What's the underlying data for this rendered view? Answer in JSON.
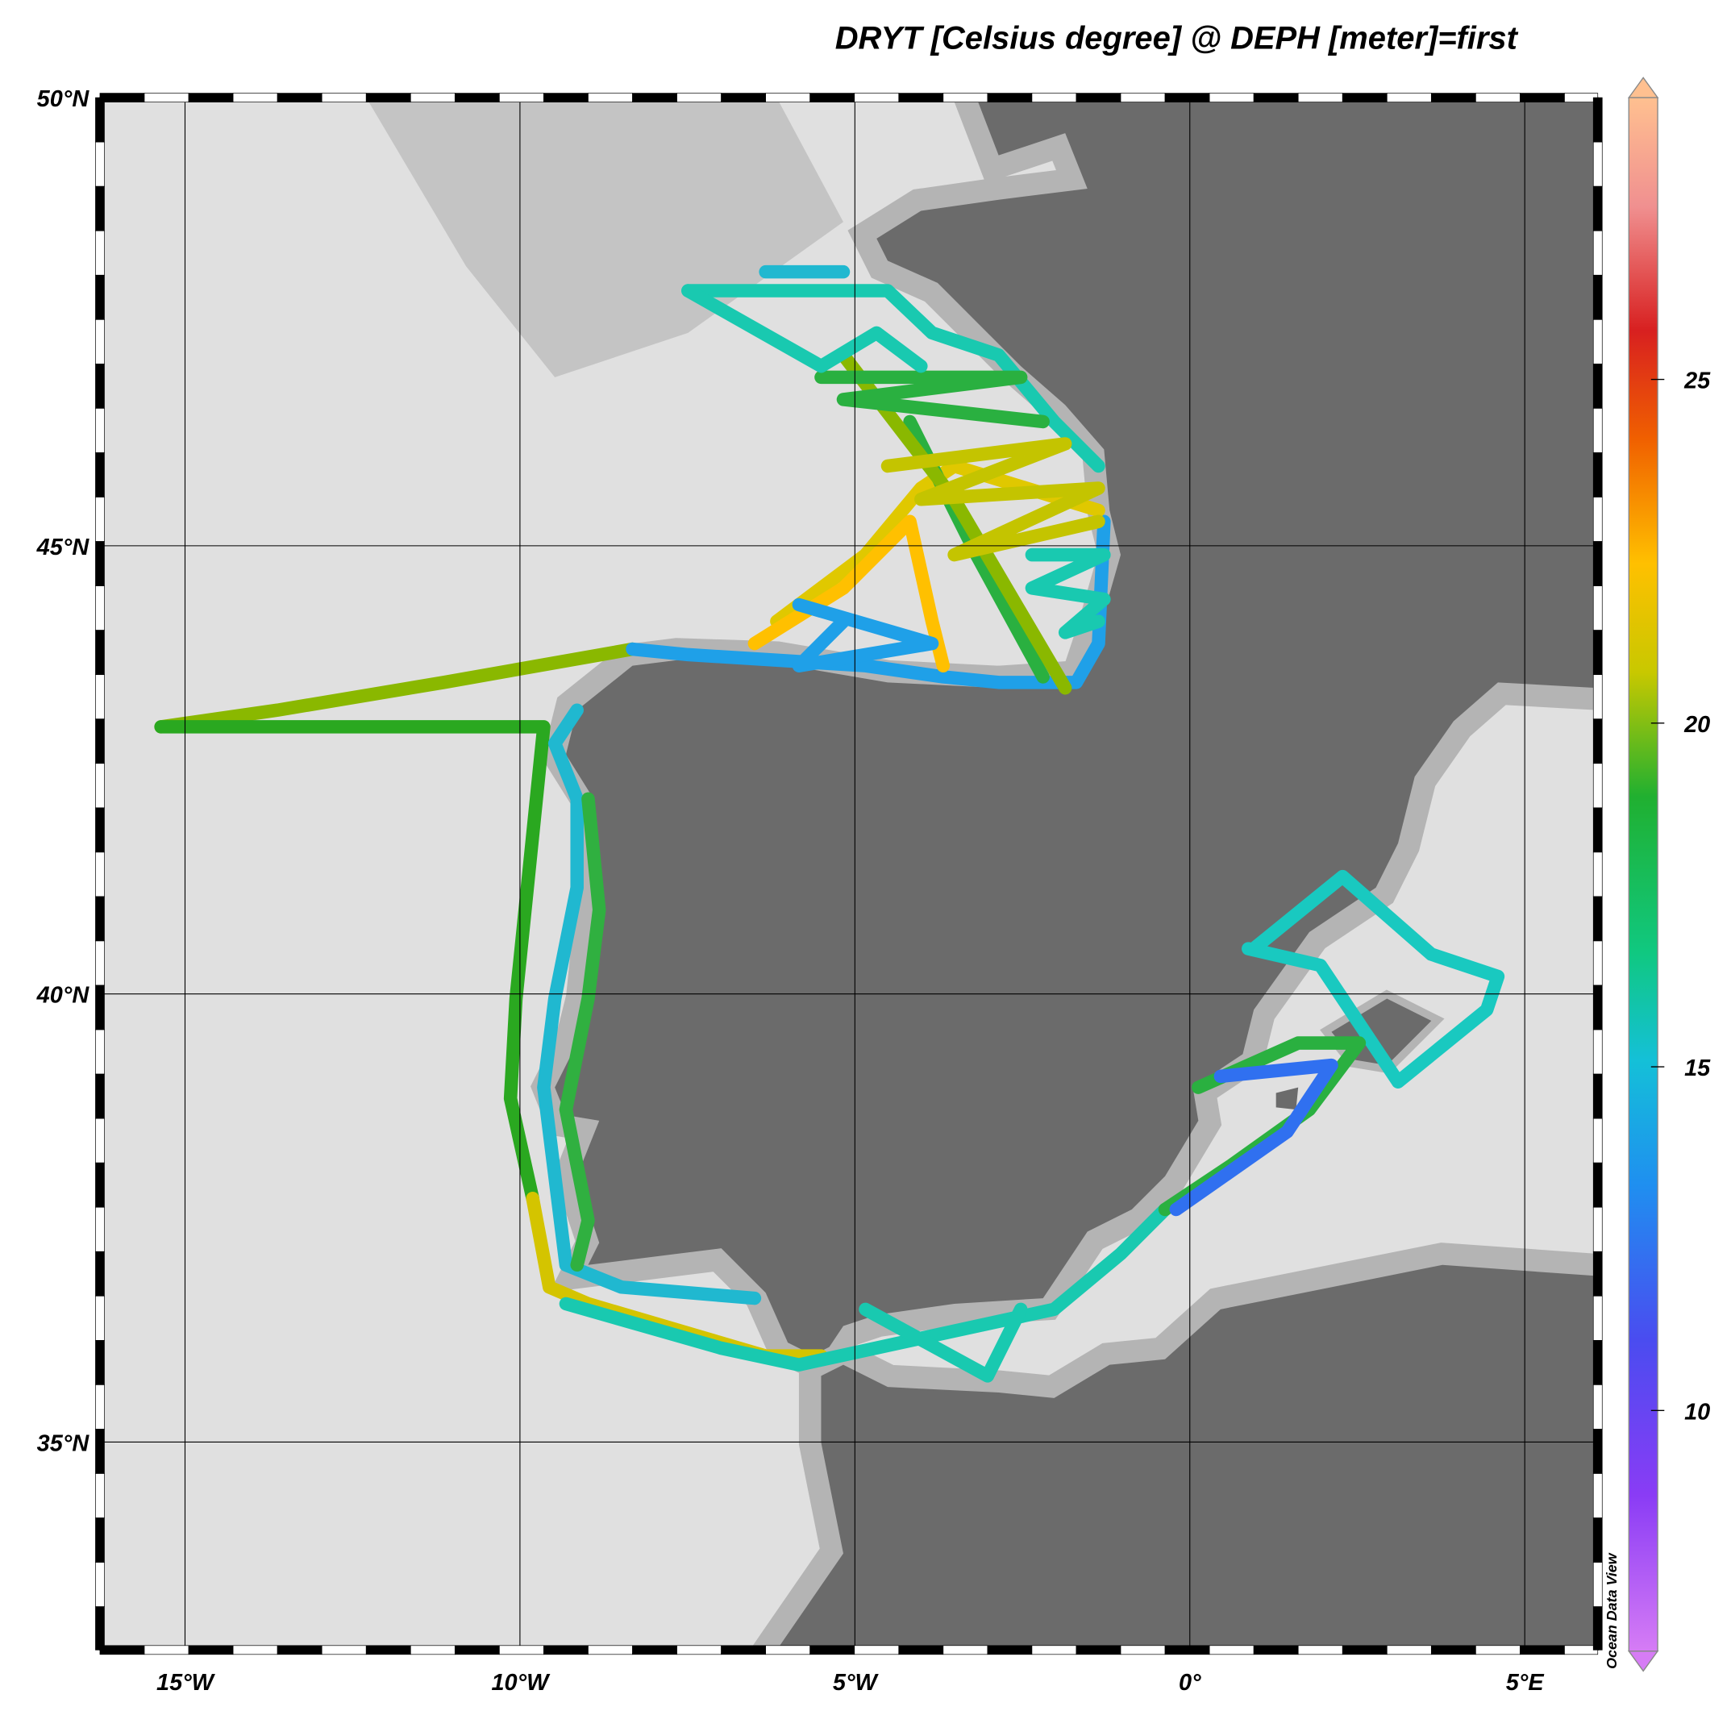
{
  "title": "DRYT [Celsius degree] @ DEPH [meter]=first",
  "map": {
    "lon_lim": [
      -16.27,
      6.09
    ],
    "lat_lim": [
      32.68,
      50
    ],
    "lon_ticks": [
      {
        "value": -15,
        "label": "15°W"
      },
      {
        "value": -10,
        "label": "10°W"
      },
      {
        "value": -5,
        "label": "5°W"
      },
      {
        "value": 0,
        "label": "0°"
      },
      {
        "value": 5,
        "label": "5°E"
      }
    ],
    "lat_ticks": [
      {
        "value": 50,
        "label": "50°N"
      },
      {
        "value": 45,
        "label": "45°N"
      },
      {
        "value": 40,
        "label": "40°N"
      },
      {
        "value": 35,
        "label": "35°N"
      }
    ]
  },
  "colorbar": {
    "lim": [
      6.5,
      29.1
    ],
    "ticks": [
      10,
      15,
      20,
      25
    ]
  },
  "watermark": "Ocean Data View"
}
